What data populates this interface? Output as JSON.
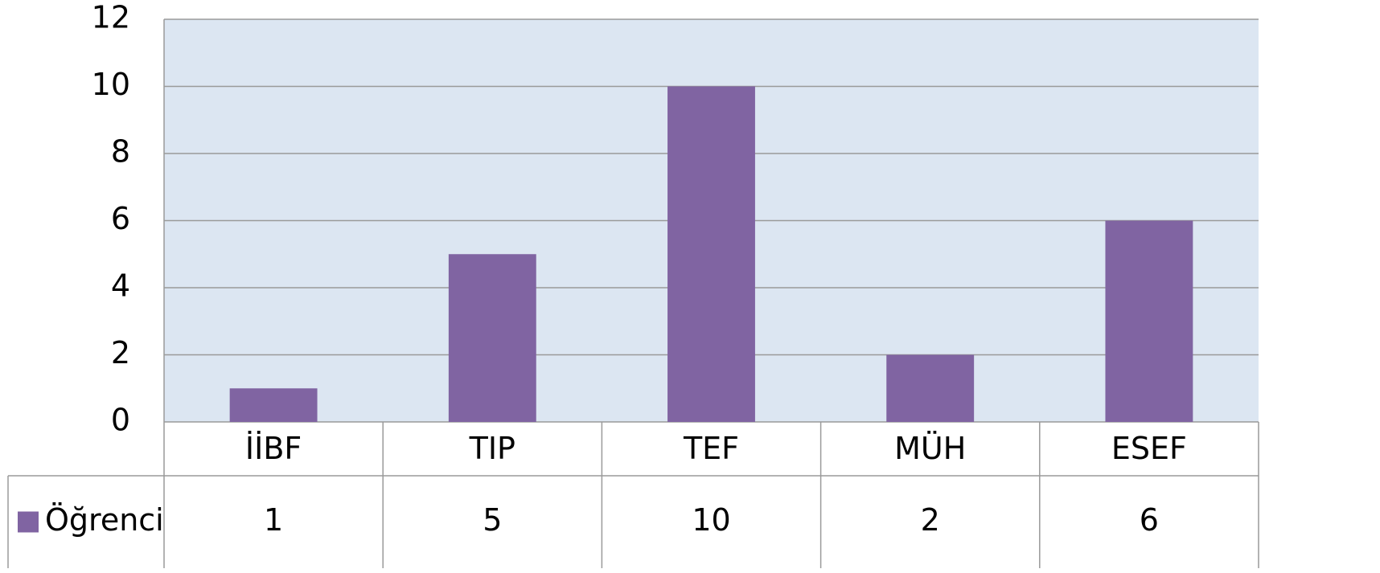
{
  "chart_data": {
    "type": "bar",
    "categories": [
      "İİBF",
      "TIP",
      "TEF",
      "MÜH",
      "ESEF"
    ],
    "series": [
      {
        "name": "Öğrenci",
        "color": "#8064a2",
        "values": [
          1,
          5,
          10,
          2,
          6
        ]
      }
    ],
    "ylim": [
      0,
      12
    ],
    "yticks": [
      0,
      2,
      4,
      6,
      8,
      10,
      12
    ],
    "grid": true
  }
}
